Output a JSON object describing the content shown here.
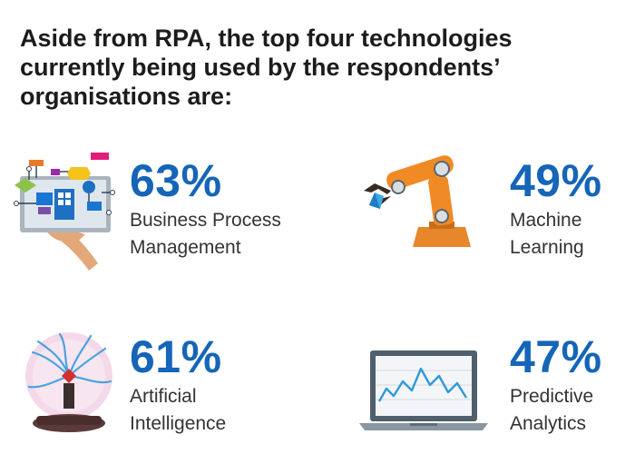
{
  "heading": {
    "line1": "Aside from RPA, the top four technologies",
    "line2": "currently being used by the respondents’",
    "line3": "organisations are:"
  },
  "stats": [
    {
      "percent": "63%",
      "label_line1": "Business Process",
      "label_line2": "Management",
      "icon": "workflow-tablet-icon"
    },
    {
      "percent": "49%",
      "label_line1": "Machine",
      "label_line2": "Learning",
      "icon": "robotic-arm-icon"
    },
    {
      "percent": "61%",
      "label_line1": "Artificial",
      "label_line2": "Intelligence",
      "icon": "plasma-ball-icon"
    },
    {
      "percent": "47%",
      "label_line1": "Predictive",
      "label_line2": "Analytics",
      "icon": "laptop-chart-icon"
    }
  ],
  "colors": {
    "accent": "#1565b8",
    "heading": "#1c1c1c",
    "label": "#333333"
  }
}
